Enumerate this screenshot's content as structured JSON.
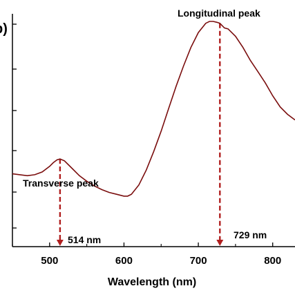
{
  "chart_data": {
    "type": "line",
    "title": "",
    "panel_label": "b)",
    "xlabel": "Wavelength (nm)",
    "ylabel": "",
    "xlim": [
      450,
      830
    ],
    "ylim": [
      0,
      1
    ],
    "x_ticks": [
      500,
      600,
      700,
      800
    ],
    "grid": false,
    "legend": "none",
    "colors": {
      "series": "#7a0d0d",
      "annotation": "#b01e1e",
      "axis": "#000000"
    },
    "series": [
      {
        "x": [
          450,
          460,
          470,
          480,
          490,
          500,
          505,
          510,
          514,
          520,
          530,
          540,
          550,
          560,
          570,
          580,
          590,
          600,
          605,
          610,
          620,
          630,
          640,
          650,
          660,
          670,
          680,
          690,
          700,
          710,
          715,
          720,
          725,
          729,
          735,
          740,
          750,
          760,
          770,
          780,
          790,
          800,
          810,
          820,
          830
        ],
        "y": [
          0.18,
          0.175,
          0.17,
          0.175,
          0.19,
          0.22,
          0.24,
          0.255,
          0.26,
          0.25,
          0.21,
          0.17,
          0.14,
          0.115,
          0.095,
          0.08,
          0.07,
          0.06,
          0.06,
          0.07,
          0.12,
          0.2,
          0.3,
          0.41,
          0.53,
          0.65,
          0.76,
          0.86,
          0.94,
          0.99,
          1.0,
          1.0,
          0.995,
          0.99,
          0.965,
          0.96,
          0.92,
          0.86,
          0.79,
          0.73,
          0.67,
          0.6,
          0.54,
          0.5,
          0.47
        ]
      }
    ],
    "annotations": [
      {
        "label": "Transverse peak",
        "x": 514,
        "value_label": "514 nm"
      },
      {
        "label": "Longitudinal peak",
        "x": 729,
        "value_label": "729 nm"
      }
    ]
  }
}
